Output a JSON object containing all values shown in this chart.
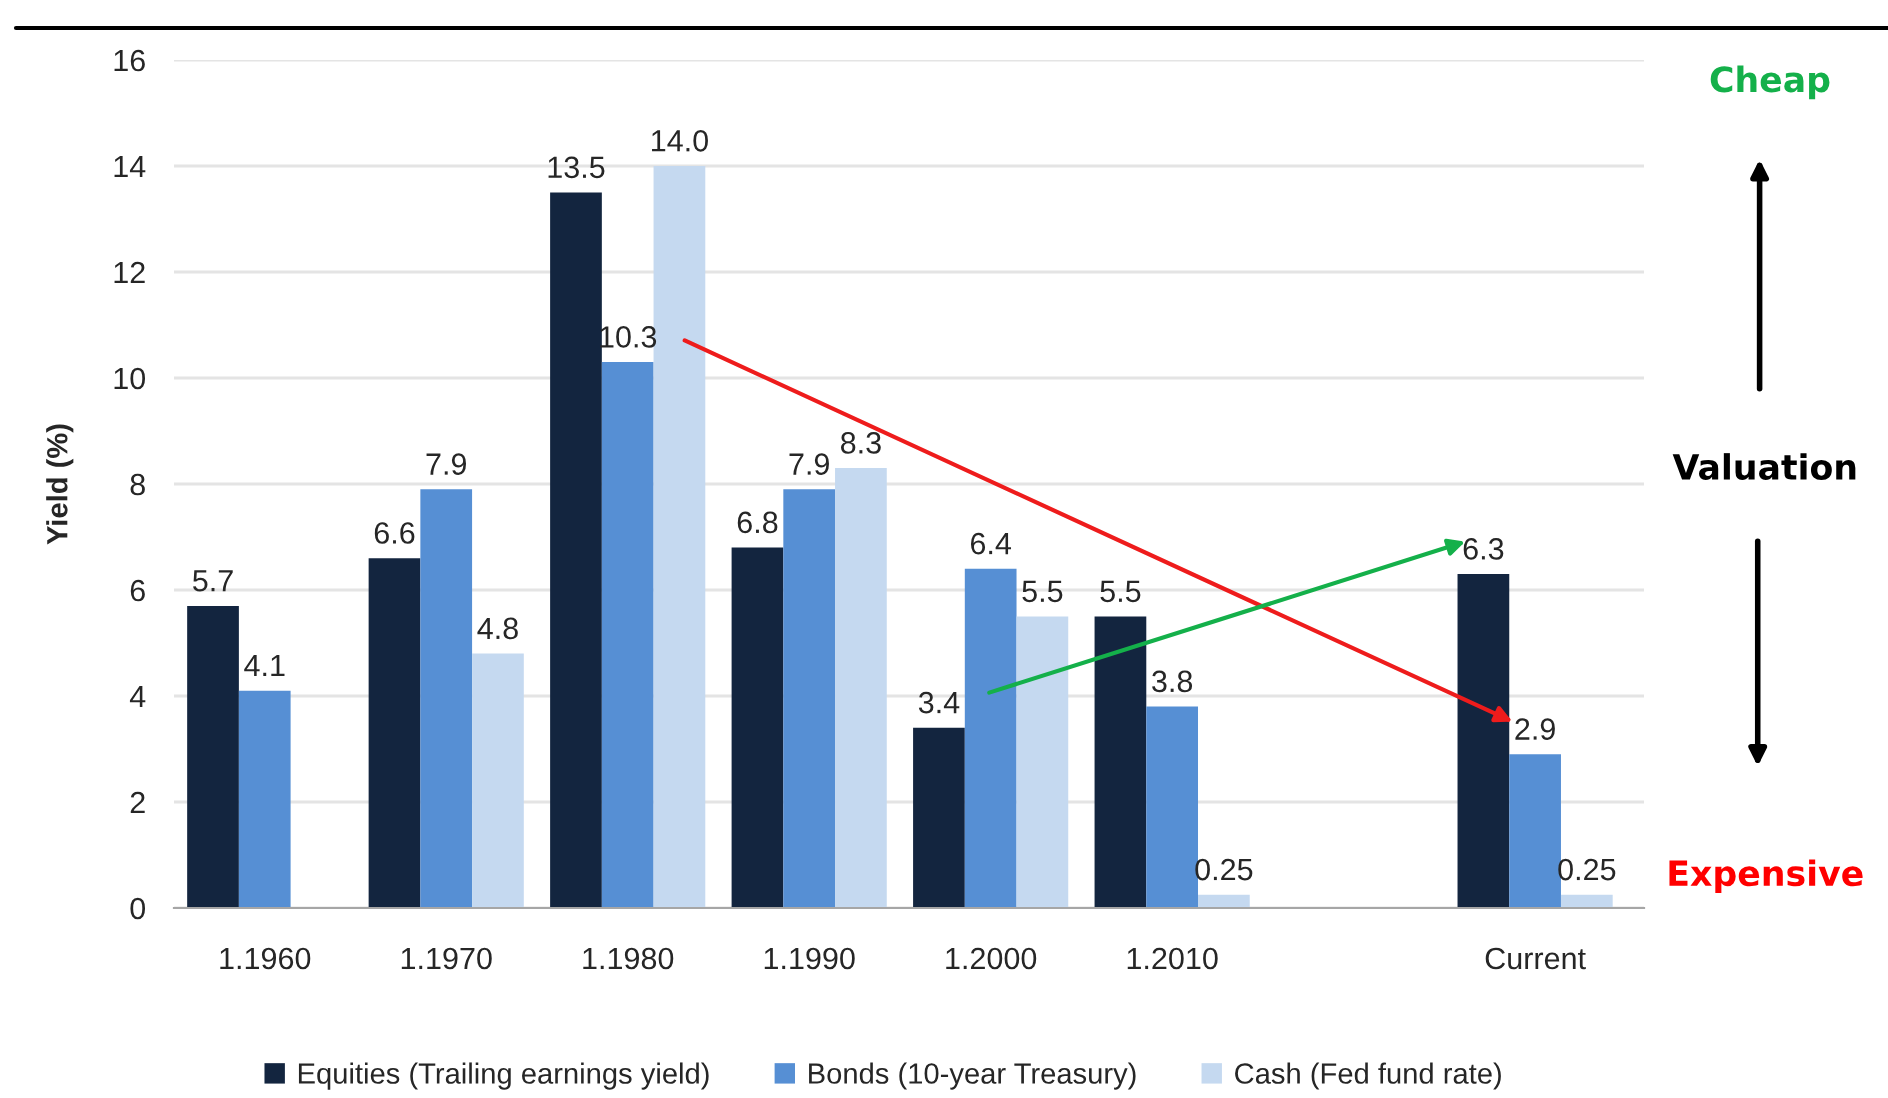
{
  "chart_data": {
    "type": "bar",
    "ylabel": "Yield (%)",
    "categories": [
      "1.1960",
      "1.1970",
      "1.1980",
      "1.1990",
      "1.2000",
      "1.2010",
      null,
      "Current"
    ],
    "series": [
      {
        "name": "Equities (Trailing earnings yield)",
        "color": "#13253f",
        "values": [
          5.7,
          6.6,
          13.5,
          6.8,
          3.4,
          5.5,
          null,
          6.3
        ],
        "value_labels": [
          "5.7",
          "6.6",
          "13.5",
          "6.8",
          "3.4",
          "5.5",
          null,
          "6.3"
        ]
      },
      {
        "name": "Bonds (10-year Treasury)",
        "color": "#568fd4",
        "values": [
          4.1,
          7.9,
          10.3,
          7.9,
          6.4,
          3.8,
          null,
          2.9
        ],
        "value_labels": [
          "4.1",
          "7.9",
          "10.3",
          "7.9",
          "6.4",
          "3.8",
          null,
          "2.9"
        ]
      },
      {
        "name": "Cash (Fed fund rate)",
        "color": "#c5d9f0",
        "values": [
          null,
          4.8,
          14.0,
          8.3,
          5.5,
          0.25,
          null,
          0.25
        ],
        "value_labels": [
          null,
          "4.8",
          "14.0",
          "8.3",
          "5.5",
          "0.25",
          null,
          "0.25"
        ]
      }
    ],
    "ylim": [
      0,
      16
    ],
    "yticks": [
      0,
      2,
      4,
      6,
      8,
      10,
      12,
      14,
      16
    ],
    "grid": "y",
    "legend": "bottom",
    "annotations": [
      "Cheap",
      "Valuation",
      "Expensive"
    ]
  }
}
